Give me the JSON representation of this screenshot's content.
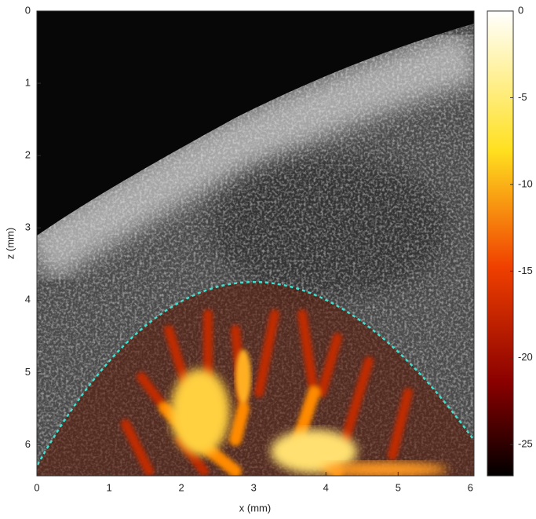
{
  "chart_data": {
    "type": "image",
    "xlabel": "x (mm)",
    "ylabel": "z (mm)",
    "xlim": [
      0,
      6.05
    ],
    "xticks": [
      0,
      1,
      2,
      3,
      4,
      5,
      6
    ],
    "ylim": [
      0,
      6.43
    ],
    "yticks": [
      0,
      1,
      2,
      3,
      4,
      5,
      6
    ],
    "y_inverted": true,
    "clim": [
      -26.8,
      0
    ],
    "cticks": [
      0,
      -5,
      -10,
      -15,
      -20,
      -25
    ]
  }
}
